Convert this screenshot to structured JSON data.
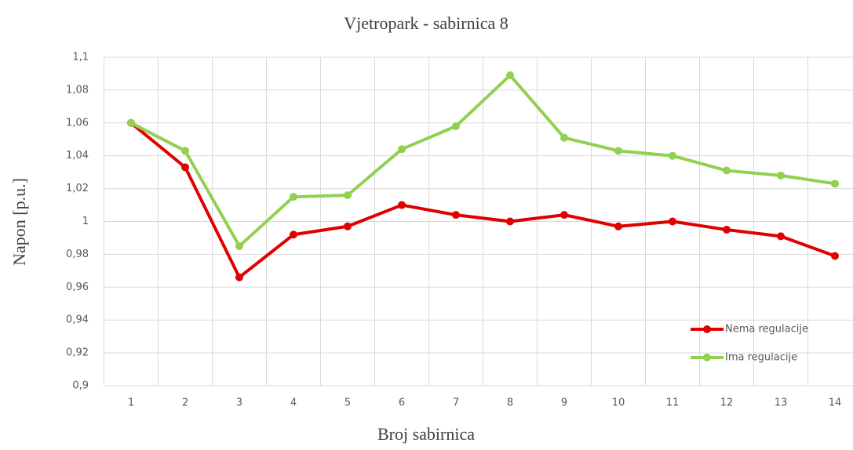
{
  "chart_data": {
    "type": "line",
    "title": "Vjetropark - sabirnica 8",
    "xlabel": "Broj sabirnica",
    "ylabel": "Napon [p.u.]",
    "categories": [
      "1",
      "2",
      "3",
      "4",
      "5",
      "6",
      "7",
      "8",
      "9",
      "10",
      "11",
      "12",
      "13",
      "14"
    ],
    "series": [
      {
        "name": "Nema regulacije",
        "color": "#e00000",
        "values": [
          1.06,
          1.033,
          0.966,
          0.992,
          0.997,
          1.01,
          1.004,
          1.0,
          1.004,
          0.997,
          1.0,
          0.995,
          0.991,
          0.979
        ]
      },
      {
        "name": "Ima regulacije",
        "color": "#92d050",
        "values": [
          1.06,
          1.043,
          0.985,
          1.015,
          1.016,
          1.044,
          1.058,
          1.089,
          1.051,
          1.043,
          1.04,
          1.031,
          1.028,
          1.023
        ]
      }
    ],
    "ylim": [
      0.9,
      1.1
    ],
    "yticks": [
      {
        "value": 0.9,
        "label": "0,9"
      },
      {
        "value": 0.92,
        "label": "0,92"
      },
      {
        "value": 0.94,
        "label": "0,94"
      },
      {
        "value": 0.96,
        "label": "0,96"
      },
      {
        "value": 0.98,
        "label": "0,98"
      },
      1,
      {
        "value": 1.02,
        "label": "1,02"
      },
      {
        "value": 1.04,
        "label": "1,04"
      },
      {
        "value": 1.06,
        "label": "1,06"
      },
      {
        "value": 1.08,
        "label": "1,08"
      },
      {
        "value": 1.1,
        "label": "1,1"
      }
    ],
    "grid": true,
    "legend": "lower right"
  }
}
